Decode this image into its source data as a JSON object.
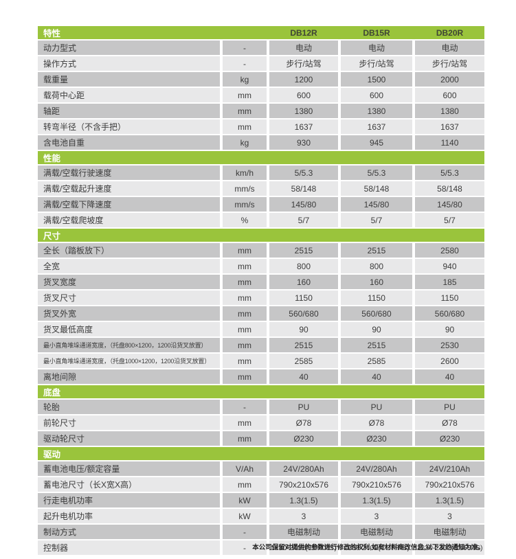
{
  "table": {
    "header": {
      "feature_label": "特性",
      "models": [
        "DB12R",
        "DB15R",
        "DB20R"
      ]
    },
    "sections": [
      {
        "title": null,
        "rows": [
          {
            "label": "动力型式",
            "unit": "-",
            "values": [
              "电动",
              "电动",
              "电动"
            ]
          },
          {
            "label": "操作方式",
            "unit": "-",
            "values": [
              "步行/站驾",
              "步行/站驾",
              "步行/站驾"
            ]
          },
          {
            "label": "载重量",
            "unit": "kg",
            "values": [
              "1200",
              "1500",
              "2000"
            ]
          },
          {
            "label": "载荷中心距",
            "unit": "mm",
            "values": [
              "600",
              "600",
              "600"
            ]
          },
          {
            "label": "轴距",
            "unit": "mm",
            "values": [
              "1380",
              "1380",
              "1380"
            ]
          },
          {
            "label": "转弯半径（不含手把）",
            "unit": "mm",
            "values": [
              "1637",
              "1637",
              "1637"
            ]
          },
          {
            "label": "含电池自重",
            "unit": "kg",
            "values": [
              "930",
              "945",
              "1140"
            ]
          }
        ]
      },
      {
        "title": "性能",
        "rows": [
          {
            "label": "满载/空载行驶速度",
            "unit": "km/h",
            "values": [
              "5/5.3",
              "5/5.3",
              "5/5.3"
            ]
          },
          {
            "label": "满载/空载起升速度",
            "unit": "mm/s",
            "values": [
              "58/148",
              "58/148",
              "58/148"
            ]
          },
          {
            "label": "满载/空载下降速度",
            "unit": "mm/s",
            "values": [
              "145/80",
              "145/80",
              "145/80"
            ]
          },
          {
            "label": "满载/空载爬坡度",
            "unit": "%",
            "values": [
              "5/7",
              "5/7",
              "5/7"
            ]
          }
        ]
      },
      {
        "title": "尺寸",
        "rows": [
          {
            "label": "全长（踏板放下）",
            "unit": "mm",
            "values": [
              "2515",
              "2515",
              "2580"
            ]
          },
          {
            "label": "全宽",
            "unit": "mm",
            "values": [
              "800",
              "800",
              "940"
            ]
          },
          {
            "label": "货叉宽度",
            "unit": "mm",
            "values": [
              "160",
              "160",
              "185"
            ]
          },
          {
            "label": "货叉尺寸",
            "unit": "mm",
            "values": [
              "1150",
              "1150",
              "1150"
            ]
          },
          {
            "label": "货叉外宽",
            "unit": "mm",
            "values": [
              "560/680",
              "560/680",
              "560/680"
            ]
          },
          {
            "label": "货叉最低高度",
            "unit": "mm",
            "values": [
              "90",
              "90",
              "90"
            ]
          },
          {
            "label": "最小直角堆垛通道宽度，（托盘800×1200，1200沿货叉放置）",
            "unit": "mm",
            "values": [
              "2515",
              "2515",
              "2530"
            ]
          },
          {
            "label": "最小直角堆垛通道宽度，（托盘1000×1200，1200沿货叉放置）",
            "unit": "mm",
            "values": [
              "2585",
              "2585",
              "2600"
            ]
          },
          {
            "label": "离地间隙",
            "unit": "mm",
            "values": [
              "40",
              "40",
              "40"
            ]
          }
        ]
      },
      {
        "title": "底盘",
        "rows": [
          {
            "label": "轮胎",
            "unit": "-",
            "values": [
              "PU",
              "PU",
              "PU"
            ]
          },
          {
            "label": "前轮尺寸",
            "unit": "mm",
            "values": [
              "Ø78",
              "Ø78",
              "Ø78"
            ]
          },
          {
            "label": "驱动轮尺寸",
            "unit": "mm",
            "values": [
              "Ø230",
              "Ø230",
              "Ø230"
            ]
          }
        ]
      },
      {
        "title": "驱动",
        "rows": [
          {
            "label": "蓄电池电压/额定容量",
            "unit": "V/Ah",
            "values": [
              "24V/280Ah",
              "24V/280Ah",
              "24V/210Ah"
            ]
          },
          {
            "label": "蓄电池尺寸（长X宽X高）",
            "unit": "mm",
            "values": [
              "790x210x576",
              "790x210x576",
              "790x210x576"
            ]
          },
          {
            "label": "行走电机功率",
            "unit": "kW",
            "values": [
              "1.3(1.5)",
              "1.3(1.5)",
              "1.3(1.5)"
            ]
          },
          {
            "label": "起升电机功率",
            "unit": "kW",
            "values": [
              "3",
              "3",
              "3"
            ]
          },
          {
            "label": "制动方式",
            "unit": "-",
            "values": [
              "电磁制动",
              "电磁制动",
              "电磁制动"
            ]
          },
          {
            "label": "控制器",
            "unit": "-",
            "values": [
              "1230-2402(CURTIS)",
              "1230-2402(CURTIS)",
              "1230-2402(CURTIS)"
            ]
          }
        ]
      }
    ],
    "footnote": "本公司保留对提供的参数进行修改的权利,如有材料商改信息,以下发的通知为准。"
  },
  "colors": {
    "accent_green": "#9ac43c",
    "row_dark": "#c6c6c7",
    "row_light": "#e8e8e9",
    "text": "#3b3b3b"
  }
}
